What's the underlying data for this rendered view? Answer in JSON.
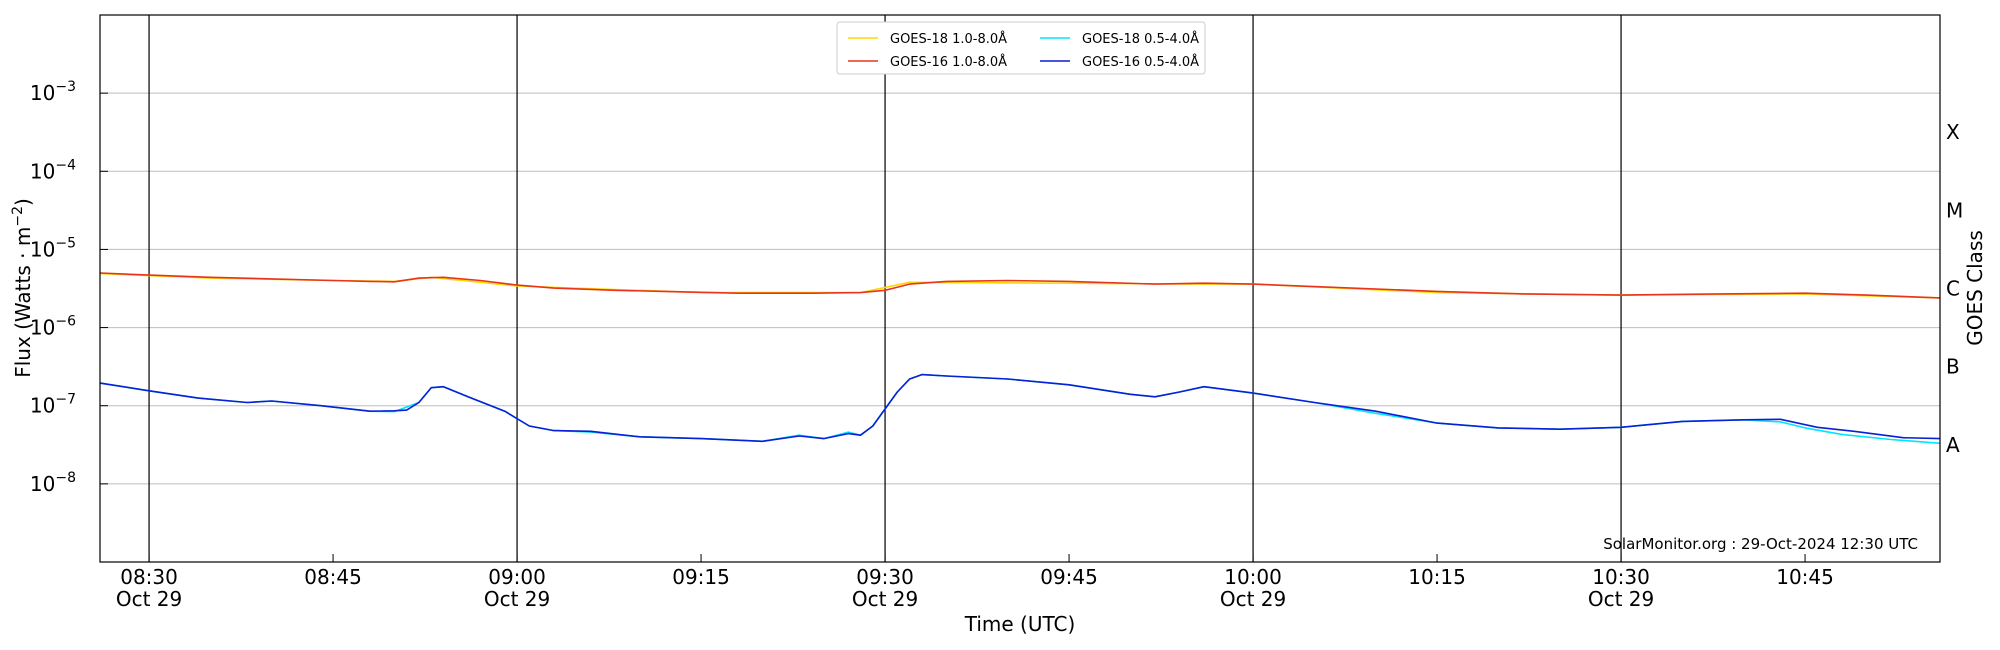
{
  "chart_data": {
    "type": "line",
    "xlabel": "Time (UTC)",
    "ylabel_main": "Flux (Watts · m",
    "ylabel_sup": "−2",
    "ylabel_close": ")",
    "right_axis_label": "GOES Class",
    "y_scale": "log",
    "xlim": [
      "08:26",
      "10:56"
    ],
    "ylim": [
      1e-09,
      0.01
    ],
    "grid": "horizontal at y decades",
    "legend_position": "top-center",
    "y_ticks": [
      {
        "value": 1e-08,
        "base": "10",
        "exp": "−8"
      },
      {
        "value": 1e-07,
        "base": "10",
        "exp": "−7"
      },
      {
        "value": 1e-06,
        "base": "10",
        "exp": "−6"
      },
      {
        "value": 1e-05,
        "base": "10",
        "exp": "−5"
      },
      {
        "value": 0.0001,
        "base": "10",
        "exp": "−4"
      },
      {
        "value": 0.001,
        "base": "10",
        "exp": "−3"
      }
    ],
    "x_ticks": [
      {
        "time": "08:30",
        "label": "08:30",
        "sublabel": "Oct 29",
        "major": true
      },
      {
        "time": "08:45",
        "label": "08:45",
        "sublabel": "",
        "major": false
      },
      {
        "time": "09:00",
        "label": "09:00",
        "sublabel": "Oct 29",
        "major": true
      },
      {
        "time": "09:15",
        "label": "09:15",
        "sublabel": "",
        "major": false
      },
      {
        "time": "09:30",
        "label": "09:30",
        "sublabel": "Oct 29",
        "major": true
      },
      {
        "time": "09:45",
        "label": "09:45",
        "sublabel": "",
        "major": false
      },
      {
        "time": "10:00",
        "label": "10:00",
        "sublabel": "Oct 29",
        "major": true
      },
      {
        "time": "10:15",
        "label": "10:15",
        "sublabel": "",
        "major": false
      },
      {
        "time": "10:30",
        "label": "10:30",
        "sublabel": "Oct 29",
        "major": true
      },
      {
        "time": "10:45",
        "label": "10:45",
        "sublabel": "",
        "major": false
      }
    ],
    "class_labels": [
      {
        "label": "A",
        "value": 3.16e-08
      },
      {
        "label": "B",
        "value": 3.16e-07
      },
      {
        "label": "C",
        "value": 3.16e-06
      },
      {
        "label": "M",
        "value": 3.16e-05
      },
      {
        "label": "X",
        "value": 0.000316
      }
    ],
    "annotation": "SolarMonitor.org : 29-Oct-2024 12:30 UTC",
    "series": [
      {
        "name": "GOES-18 1.0-8.0Å",
        "color": "#ffd700",
        "points": [
          [
            "08:26",
            4.9e-06
          ],
          [
            "08:35",
            4.3e-06
          ],
          [
            "08:45",
            4e-06
          ],
          [
            "08:50",
            3.9e-06
          ],
          [
            "08:53",
            4.4e-06
          ],
          [
            "09:00",
            3.4e-06
          ],
          [
            "09:15",
            2.8e-06
          ],
          [
            "09:28",
            2.8e-06
          ],
          [
            "09:32",
            3.8e-06
          ],
          [
            "09:45",
            3.7e-06
          ],
          [
            "09:55",
            3.6e-06
          ],
          [
            "10:00",
            3.6e-06
          ],
          [
            "10:15",
            2.8e-06
          ],
          [
            "10:30",
            2.6e-06
          ],
          [
            "10:45",
            2.7e-06
          ],
          [
            "10:56",
            2.4e-06
          ]
        ]
      },
      {
        "name": "GOES-16 1.0-8.0Å",
        "color": "#e8341c",
        "points": [
          [
            "08:26",
            5e-06
          ],
          [
            "08:30",
            4.7e-06
          ],
          [
            "08:35",
            4.4e-06
          ],
          [
            "08:40",
            4.2e-06
          ],
          [
            "08:45",
            4e-06
          ],
          [
            "08:48",
            3.9e-06
          ],
          [
            "08:50",
            3.85e-06
          ],
          [
            "08:52",
            4.3e-06
          ],
          [
            "08:54",
            4.4e-06
          ],
          [
            "08:57",
            4e-06
          ],
          [
            "09:00",
            3.5e-06
          ],
          [
            "09:03",
            3.2e-06
          ],
          [
            "09:08",
            3e-06
          ],
          [
            "09:12",
            2.9e-06
          ],
          [
            "09:18",
            2.75e-06
          ],
          [
            "09:24",
            2.75e-06
          ],
          [
            "09:28",
            2.8e-06
          ],
          [
            "09:30",
            3e-06
          ],
          [
            "09:32",
            3.6e-06
          ],
          [
            "09:35",
            3.9e-06
          ],
          [
            "09:40",
            4e-06
          ],
          [
            "09:45",
            3.9e-06
          ],
          [
            "09:52",
            3.6e-06
          ],
          [
            "09:56",
            3.7e-06
          ],
          [
            "10:00",
            3.6e-06
          ],
          [
            "10:06",
            3.3e-06
          ],
          [
            "10:15",
            2.9e-06
          ],
          [
            "10:22",
            2.7e-06
          ],
          [
            "10:30",
            2.6e-06
          ],
          [
            "10:38",
            2.7e-06
          ],
          [
            "10:45",
            2.75e-06
          ],
          [
            "10:50",
            2.6e-06
          ],
          [
            "10:56",
            2.4e-06
          ]
        ]
      },
      {
        "name": "GOES-18 0.5-4.0Å",
        "color": "#00e5ff",
        "points": [
          [
            "08:26",
            1.95e-07
          ],
          [
            "08:30",
            1.55e-07
          ],
          [
            "08:34",
            1.25e-07
          ],
          [
            "08:38",
            1.1e-07
          ],
          [
            "08:40",
            1.15e-07
          ],
          [
            "08:44",
            1e-07
          ],
          [
            "08:48",
            8.5e-08
          ],
          [
            "08:50",
            8.4e-08
          ],
          [
            "08:52",
            1.1e-07
          ],
          [
            "08:53",
            1.7e-07
          ],
          [
            "08:54",
            1.75e-07
          ],
          [
            "08:56",
            1.3e-07
          ],
          [
            "08:59",
            8.5e-08
          ],
          [
            "09:01",
            5.5e-08
          ],
          [
            "09:03",
            4.8e-08
          ],
          [
            "09:06",
            4.6e-08
          ],
          [
            "09:10",
            4e-08
          ],
          [
            "09:15",
            3.8e-08
          ],
          [
            "09:20",
            3.5e-08
          ],
          [
            "09:23",
            4.2e-08
          ],
          [
            "09:25",
            3.8e-08
          ],
          [
            "09:27",
            4.6e-08
          ],
          [
            "09:28",
            4.2e-08
          ],
          [
            "09:29",
            5.5e-08
          ],
          [
            "09:31",
            1.5e-07
          ],
          [
            "09:32",
            2.2e-07
          ],
          [
            "09:33",
            2.5e-07
          ],
          [
            "09:35",
            2.4e-07
          ],
          [
            "09:40",
            2.2e-07
          ],
          [
            "09:45",
            1.85e-07
          ],
          [
            "09:50",
            1.4e-07
          ],
          [
            "09:52",
            1.3e-07
          ],
          [
            "09:54",
            1.5e-07
          ],
          [
            "09:56",
            1.75e-07
          ],
          [
            "10:00",
            1.45e-07
          ],
          [
            "10:05",
            1.1e-07
          ],
          [
            "10:10",
            8e-08
          ],
          [
            "10:15",
            6e-08
          ],
          [
            "10:20",
            5.2e-08
          ],
          [
            "10:25",
            5e-08
          ],
          [
            "10:30",
            5.3e-08
          ],
          [
            "10:35",
            6.3e-08
          ],
          [
            "10:40",
            6.6e-08
          ],
          [
            "10:43",
            6.2e-08
          ],
          [
            "10:45",
            5.2e-08
          ],
          [
            "10:48",
            4.3e-08
          ],
          [
            "10:52",
            3.7e-08
          ],
          [
            "10:56",
            3.3e-08
          ]
        ]
      },
      {
        "name": "GOES-16 0.5-4.0Å",
        "color": "#0a1fd6",
        "points": [
          [
            "08:26",
            1.95e-07
          ],
          [
            "08:30",
            1.55e-07
          ],
          [
            "08:34",
            1.25e-07
          ],
          [
            "08:38",
            1.1e-07
          ],
          [
            "08:40",
            1.15e-07
          ],
          [
            "08:44",
            1e-07
          ],
          [
            "08:48",
            8.5e-08
          ],
          [
            "08:50",
            8.6e-08
          ],
          [
            "08:51",
            8.8e-08
          ],
          [
            "08:52",
            1.1e-07
          ],
          [
            "08:53",
            1.7e-07
          ],
          [
            "08:54",
            1.75e-07
          ],
          [
            "08:56",
            1.3e-07
          ],
          [
            "08:59",
            8.5e-08
          ],
          [
            "09:01",
            5.5e-08
          ],
          [
            "09:03",
            4.8e-08
          ],
          [
            "09:06",
            4.7e-08
          ],
          [
            "09:10",
            4e-08
          ],
          [
            "09:15",
            3.8e-08
          ],
          [
            "09:20",
            3.5e-08
          ],
          [
            "09:23",
            4.1e-08
          ],
          [
            "09:25",
            3.8e-08
          ],
          [
            "09:27",
            4.4e-08
          ],
          [
            "09:28",
            4.2e-08
          ],
          [
            "09:29",
            5.5e-08
          ],
          [
            "09:31",
            1.5e-07
          ],
          [
            "09:32",
            2.2e-07
          ],
          [
            "09:33",
            2.5e-07
          ],
          [
            "09:35",
            2.4e-07
          ],
          [
            "09:40",
            2.2e-07
          ],
          [
            "09:45",
            1.85e-07
          ],
          [
            "09:50",
            1.4e-07
          ],
          [
            "09:52",
            1.3e-07
          ],
          [
            "09:54",
            1.5e-07
          ],
          [
            "09:56",
            1.75e-07
          ],
          [
            "10:00",
            1.45e-07
          ],
          [
            "10:05",
            1.1e-07
          ],
          [
            "10:10",
            8.5e-08
          ],
          [
            "10:15",
            6e-08
          ],
          [
            "10:20",
            5.2e-08
          ],
          [
            "10:25",
            5e-08
          ],
          [
            "10:30",
            5.3e-08
          ],
          [
            "10:35",
            6.3e-08
          ],
          [
            "10:40",
            6.6e-08
          ],
          [
            "10:43",
            6.7e-08
          ],
          [
            "10:46",
            5.3e-08
          ],
          [
            "10:49",
            4.7e-08
          ],
          [
            "10:53",
            3.9e-08
          ],
          [
            "10:56",
            3.8e-08
          ]
        ]
      }
    ]
  }
}
